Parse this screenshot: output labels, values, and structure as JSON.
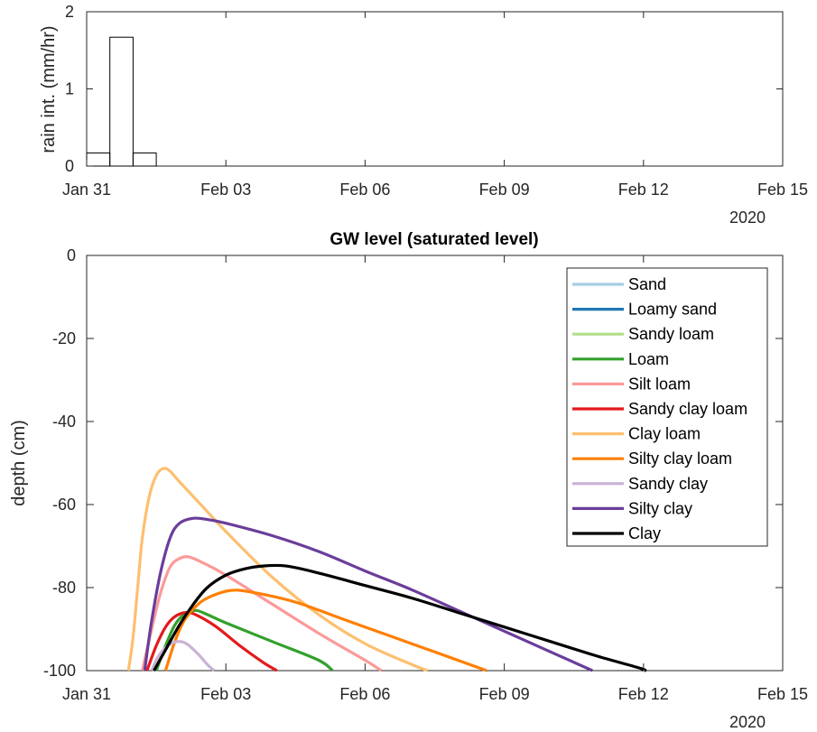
{
  "chart_data": [
    {
      "type": "bar",
      "title": "",
      "ylabel": "rain int. (mm/hr)",
      "xlabel": "",
      "x_tick_labels": [
        "Jan 31",
        "Feb 03",
        "Feb 06",
        "Feb 09",
        "Feb 12",
        "Feb 15"
      ],
      "x_ticks_days": [
        0,
        3,
        6,
        9,
        12,
        15
      ],
      "year_label": "2020",
      "ylim": [
        0,
        2
      ],
      "y_ticks": [
        0,
        1,
        2
      ],
      "xlim": [
        "Jan 31",
        "Feb 15"
      ],
      "bars": [
        {
          "start_day": 0.0,
          "end_day": 0.5,
          "value": 0.17
        },
        {
          "start_day": 0.5,
          "end_day": 1.0,
          "value": 1.67
        },
        {
          "start_day": 1.0,
          "end_day": 1.5,
          "value": 0.17
        }
      ]
    },
    {
      "type": "line",
      "title": "GW level (saturated level)",
      "ylabel": "depth (cm)",
      "xlabel": "",
      "x_tick_labels": [
        "Jan 31",
        "Feb 03",
        "Feb 06",
        "Feb 09",
        "Feb 12",
        "Feb 15"
      ],
      "x_ticks_days": [
        0,
        3,
        6,
        9,
        12,
        15
      ],
      "year_label": "2020",
      "ylim": [
        -100,
        0
      ],
      "y_ticks": [
        0,
        -20,
        -40,
        -60,
        -80,
        -100
      ],
      "legend_position": "top-right",
      "series": [
        {
          "name": "Sand",
          "color": "#a6cee3",
          "points": []
        },
        {
          "name": "Loamy sand",
          "color": "#1f78b4",
          "points": []
        },
        {
          "name": "Sandy loam",
          "color": "#b2df8a",
          "points": []
        },
        {
          "name": "Loam",
          "color": "#33a02c",
          "points": [
            [
              1.5,
              -100
            ],
            [
              1.7,
              -94
            ],
            [
              1.9,
              -89
            ],
            [
              2.1,
              -86.5
            ],
            [
              2.35,
              -85.5
            ],
            [
              2.6,
              -86.5
            ],
            [
              3.0,
              -88.5
            ],
            [
              4.0,
              -93
            ],
            [
              5.0,
              -97.5
            ],
            [
              5.3,
              -100
            ]
          ]
        },
        {
          "name": "Silt loam",
          "color": "#fb9a99",
          "points": [
            [
              1.2,
              -100
            ],
            [
              1.4,
              -90
            ],
            [
              1.6,
              -81
            ],
            [
              1.8,
              -75
            ],
            [
              2.0,
              -73
            ],
            [
              2.2,
              -72.6
            ],
            [
              2.5,
              -74
            ],
            [
              3.0,
              -77
            ],
            [
              4.0,
              -84
            ],
            [
              5.0,
              -91
            ],
            [
              6.0,
              -97.5
            ],
            [
              6.35,
              -100
            ]
          ]
        },
        {
          "name": "Sandy clay loam",
          "color": "#e31a1c",
          "points": [
            [
              1.3,
              -100
            ],
            [
              1.5,
              -94
            ],
            [
              1.7,
              -89.5
            ],
            [
              1.9,
              -87
            ],
            [
              2.15,
              -86
            ],
            [
              2.4,
              -86.8
            ],
            [
              2.8,
              -89.5
            ],
            [
              3.3,
              -94
            ],
            [
              3.8,
              -98
            ],
            [
              4.1,
              -100
            ]
          ]
        },
        {
          "name": "Clay loam",
          "color": "#fdbf6f",
          "points": [
            [
              0.9,
              -100
            ],
            [
              1.0,
              -92
            ],
            [
              1.1,
              -80
            ],
            [
              1.2,
              -68
            ],
            [
              1.35,
              -58
            ],
            [
              1.5,
              -53
            ],
            [
              1.65,
              -51.3
            ],
            [
              1.8,
              -52
            ],
            [
              2.0,
              -54.5
            ],
            [
              2.5,
              -60.5
            ],
            [
              3.0,
              -66.5
            ],
            [
              4.0,
              -77.5
            ],
            [
              5.0,
              -86.5
            ],
            [
              6.0,
              -93.5
            ],
            [
              7.0,
              -98.5
            ],
            [
              7.35,
              -100
            ]
          ]
        },
        {
          "name": "Silty clay loam",
          "color": "#ff7f00",
          "points": [
            [
              1.7,
              -100
            ],
            [
              1.9,
              -93
            ],
            [
              2.1,
              -88
            ],
            [
              2.4,
              -84
            ],
            [
              2.7,
              -82
            ],
            [
              3.1,
              -80.7
            ],
            [
              3.5,
              -81
            ],
            [
              4.5,
              -83.5
            ],
            [
              5.5,
              -87.5
            ],
            [
              6.5,
              -91.5
            ],
            [
              7.5,
              -95.5
            ],
            [
              8.5,
              -99.5
            ],
            [
              8.6,
              -100
            ]
          ]
        },
        {
          "name": "Sandy clay",
          "color": "#cab2d6",
          "points": [
            [
              1.4,
              -100
            ],
            [
              1.55,
              -96.5
            ],
            [
              1.75,
              -94
            ],
            [
              1.95,
              -93
            ],
            [
              2.15,
              -93.5
            ],
            [
              2.4,
              -96
            ],
            [
              2.6,
              -98.5
            ],
            [
              2.75,
              -100
            ]
          ]
        },
        {
          "name": "Silty clay",
          "color": "#6a3d9a",
          "points": [
            [
              1.25,
              -100
            ],
            [
              1.4,
              -88
            ],
            [
              1.6,
              -76
            ],
            [
              1.8,
              -68
            ],
            [
              2.0,
              -64.5
            ],
            [
              2.3,
              -63.3
            ],
            [
              2.6,
              -63.6
            ],
            [
              3.0,
              -64.5
            ],
            [
              4.0,
              -67.5
            ],
            [
              5.0,
              -71.3
            ],
            [
              6.0,
              -76
            ],
            [
              7.0,
              -80.5
            ],
            [
              8.0,
              -85.5
            ],
            [
              9.0,
              -90.5
            ],
            [
              10.0,
              -95.5
            ],
            [
              10.9,
              -100
            ]
          ]
        },
        {
          "name": "Clay",
          "color": "#000000",
          "points": [
            [
              1.45,
              -100
            ],
            [
              1.7,
              -95
            ],
            [
              2.0,
              -89
            ],
            [
              2.3,
              -84
            ],
            [
              2.6,
              -80
            ],
            [
              3.0,
              -77
            ],
            [
              3.4,
              -75.5
            ],
            [
              3.8,
              -74.8
            ],
            [
              4.3,
              -74.8
            ],
            [
              5.0,
              -76.5
            ],
            [
              6.0,
              -79.5
            ],
            [
              7.0,
              -82.5
            ],
            [
              8.0,
              -86
            ],
            [
              9.0,
              -89.5
            ],
            [
              10.0,
              -93
            ],
            [
              11.0,
              -96.5
            ],
            [
              11.95,
              -99.5
            ],
            [
              12.0,
              -100
            ]
          ]
        }
      ]
    }
  ]
}
